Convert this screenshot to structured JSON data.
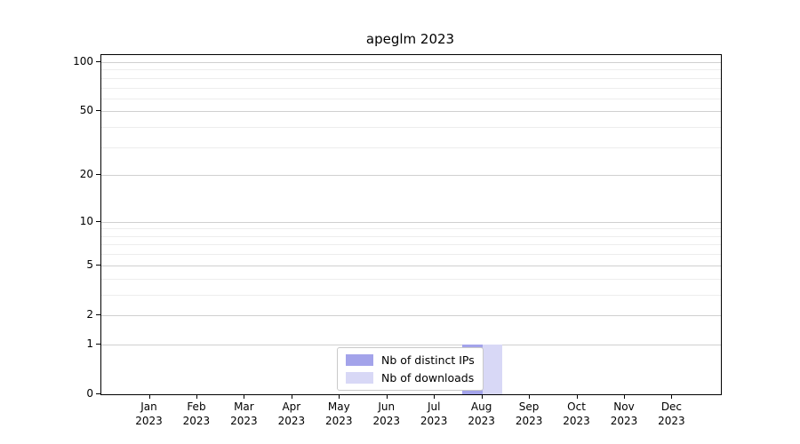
{
  "title": "apeglm 2023",
  "chart_data": {
    "type": "bar",
    "title": "apeglm 2023",
    "categories": [
      "Jan 2023",
      "Feb 2023",
      "Mar 2023",
      "Apr 2023",
      "May 2023",
      "Jun 2023",
      "Jul 2023",
      "Aug 2023",
      "Sep 2023",
      "Oct 2023",
      "Nov 2023",
      "Dec 2023"
    ],
    "series": [
      {
        "name": "Nb of distinct IPs",
        "color": "#a3a3ea",
        "values": [
          0,
          0,
          0,
          0,
          0,
          0,
          0,
          1,
          0,
          0,
          0,
          0
        ]
      },
      {
        "name": "Nb of downloads",
        "color": "#d8d8f6",
        "values": [
          0,
          0,
          0,
          0,
          0,
          0,
          0,
          1,
          0,
          0,
          0,
          0
        ]
      }
    ],
    "xlabel": "",
    "ylabel": "",
    "y_axis": {
      "scale": "log10(1+y)",
      "major_ticks": [
        0,
        1,
        2,
        5,
        10,
        20,
        50,
        100
      ],
      "minor_ticks": [
        3,
        4,
        6,
        7,
        8,
        9,
        30,
        40,
        60,
        70,
        80,
        90
      ],
      "ylim": [
        0,
        112
      ]
    },
    "grid": true,
    "legend_position": "inside-bottom-center"
  },
  "legend": {
    "items": [
      {
        "label": "Nb of distinct IPs",
        "color": "#a3a3ea"
      },
      {
        "label": "Nb of downloads",
        "color": "#d8d8f6"
      }
    ]
  },
  "colors": {
    "major_gridline": "#d0d0d0",
    "minor_gridline": "#ededed",
    "axis": "#000000",
    "background": "#ffffff"
  }
}
